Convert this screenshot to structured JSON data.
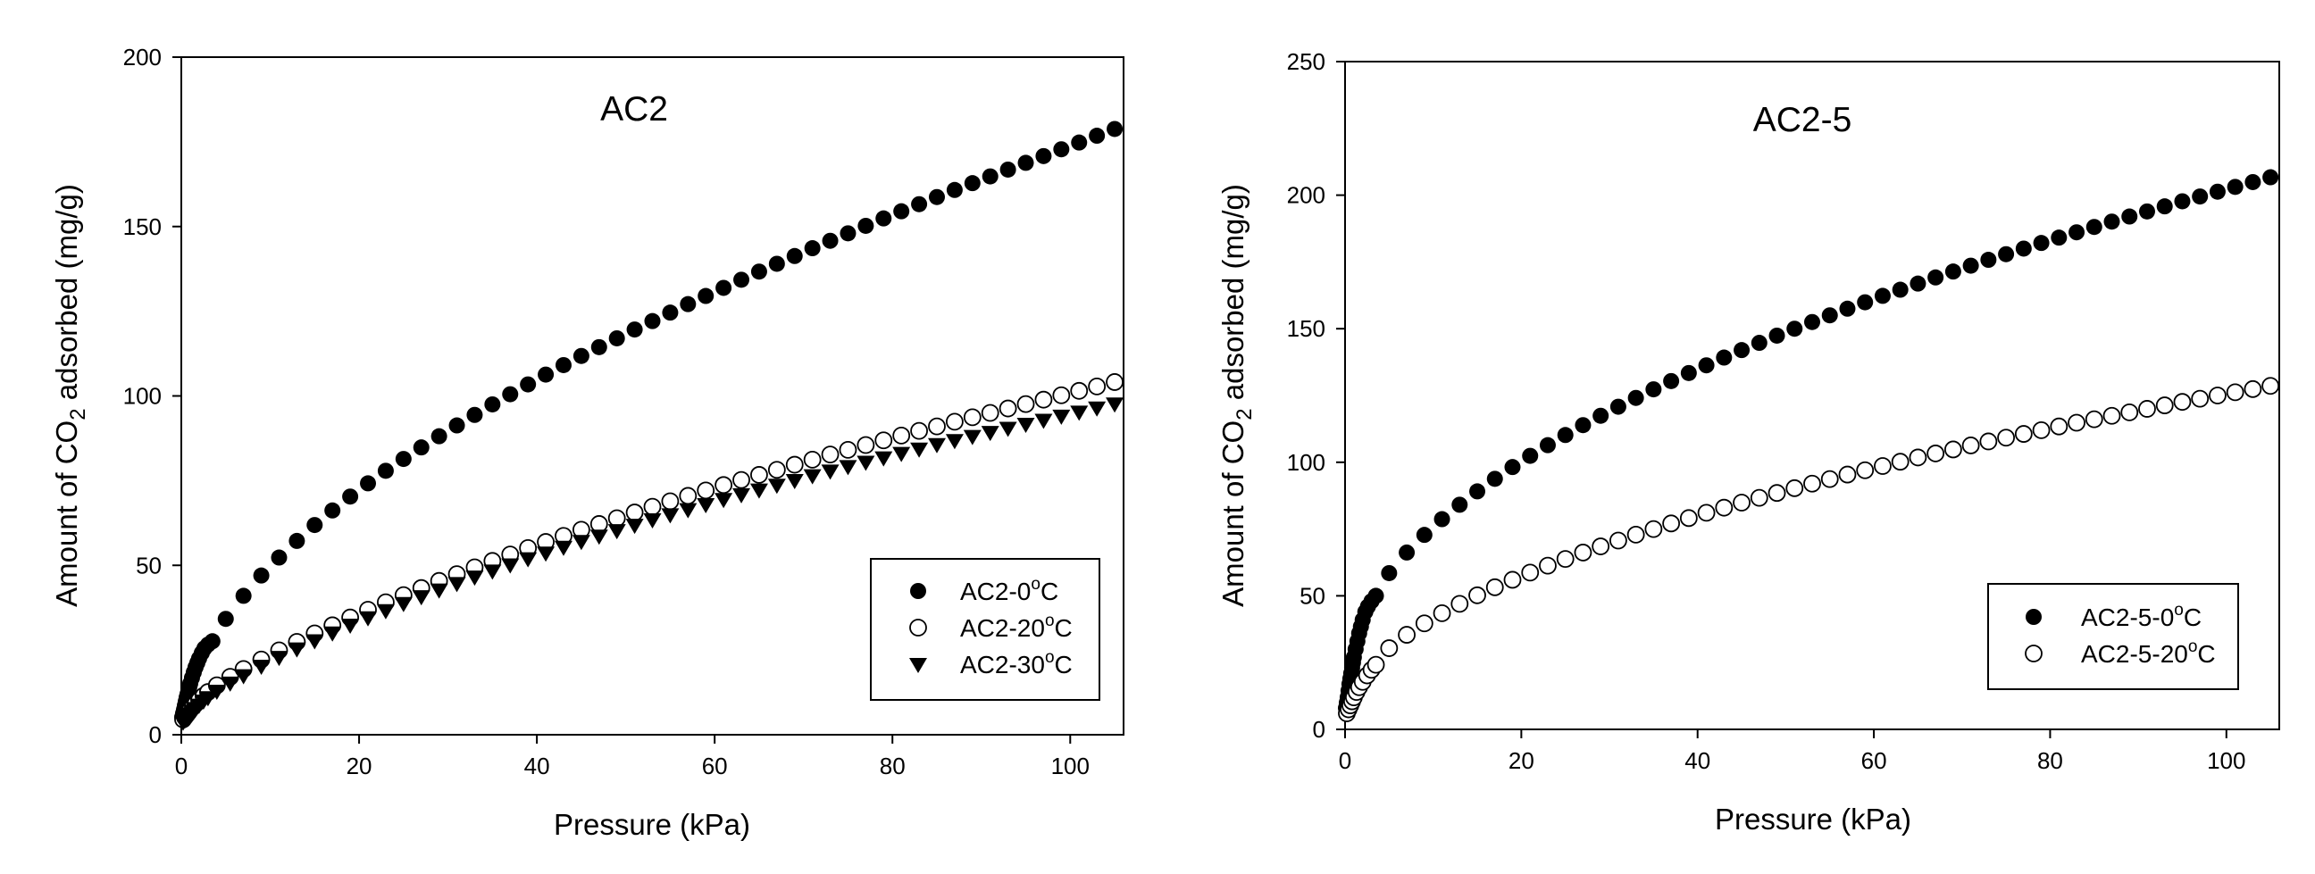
{
  "chart_data": [
    {
      "type": "scatter",
      "title": "AC2",
      "xlabel": "Pressure (kPa)",
      "ylabel": {
        "prefix": "Amount of CO",
        "sub": "2",
        "suffix": " adsorbed (mg/g)"
      },
      "xlim": [
        0,
        106
      ],
      "ylim": [
        0,
        200
      ],
      "x_ticks": [
        0,
        20,
        40,
        60,
        80,
        100
      ],
      "y_ticks": [
        0,
        50,
        100,
        150,
        200
      ],
      "legend_position": "bottom-right",
      "series": [
        {
          "name": "AC2-0",
          "legend": {
            "prefix": "AC2-0",
            "sup": "o",
            "suffix": "C"
          },
          "marker": "filled-circle",
          "x": [
            0.1,
            0.2,
            0.3,
            0.4,
            0.5,
            0.6,
            0.7,
            0.8,
            0.9,
            1.0,
            1.2,
            1.4,
            1.6,
            1.8,
            2.0,
            2.3,
            2.6,
            3.0,
            3.5,
            5,
            7,
            9,
            11,
            13,
            15,
            17,
            19,
            21,
            23,
            25,
            27,
            29,
            31,
            33,
            35,
            37,
            39,
            41,
            43,
            45,
            47,
            49,
            51,
            53,
            55,
            57,
            59,
            61,
            63,
            65,
            67,
            69,
            71,
            73,
            75,
            77,
            79,
            81,
            83,
            85,
            87,
            89,
            91,
            93,
            95,
            97,
            99,
            101,
            103,
            105
          ],
          "y": [
            5.2,
            6.3,
            7.4,
            8.6,
            9.8,
            11.0,
            12.0,
            13.1,
            14.1,
            15.1,
            16.8,
            18.4,
            19.9,
            21.2,
            22.5,
            24.1,
            25.5,
            26.6,
            27.6,
            34.2,
            41.0,
            47.0,
            52.3,
            57.2,
            61.9,
            66.2,
            70.3,
            74.2,
            77.9,
            81.4,
            84.8,
            88.1,
            91.3,
            94.4,
            97.5,
            100.5,
            103.4,
            106.3,
            109.1,
            111.8,
            114.4,
            117.0,
            119.6,
            122.1,
            124.6,
            127.1,
            129.5,
            131.9,
            134.3,
            136.7,
            139.0,
            141.3,
            143.6,
            145.8,
            148.0,
            150.2,
            152.4,
            154.5,
            156.6,
            158.7,
            160.8,
            162.8,
            164.8,
            166.8,
            168.8,
            170.8,
            172.8,
            174.8,
            176.8,
            178.8
          ]
        },
        {
          "name": "AC2-20",
          "legend": {
            "prefix": "AC2-20",
            "sup": "o",
            "suffix": "C"
          },
          "marker": "open-circle",
          "x": [
            0.2,
            0.4,
            0.6,
            0.8,
            1.0,
            1.3,
            1.6,
            2.0,
            2.5,
            3.0,
            4.0,
            5.5,
            7,
            9,
            11,
            13,
            15,
            17,
            19,
            21,
            23,
            25,
            27,
            29,
            31,
            33,
            35,
            37,
            39,
            41,
            43,
            45,
            47,
            49,
            51,
            53,
            55,
            57,
            59,
            61,
            63,
            65,
            67,
            69,
            71,
            73,
            75,
            77,
            79,
            81,
            83,
            85,
            87,
            89,
            91,
            93,
            95,
            97,
            99,
            101,
            103,
            105
          ],
          "y": [
            4.5,
            5.2,
            5.9,
            6.6,
            7.3,
            8.2,
            9.1,
            10.2,
            11.5,
            12.6,
            14.6,
            17.1,
            19.4,
            22.2,
            24.9,
            27.4,
            29.9,
            32.3,
            34.6,
            36.9,
            39.1,
            41.2,
            43.3,
            45.4,
            47.4,
            49.4,
            51.3,
            53.2,
            55.1,
            56.9,
            58.7,
            60.5,
            62.2,
            63.9,
            65.6,
            67.3,
            68.9,
            70.5,
            72.1,
            73.7,
            75.2,
            76.7,
            78.2,
            79.7,
            81.2,
            82.7,
            84.1,
            85.5,
            86.9,
            88.3,
            89.7,
            91.0,
            92.4,
            93.7,
            95.0,
            96.3,
            97.6,
            98.9,
            100.2,
            101.5,
            102.8,
            104.1
          ]
        },
        {
          "name": "AC2-30",
          "legend": {
            "prefix": "AC2-30",
            "sup": "o",
            "suffix": "C"
          },
          "marker": "filled-triangle-down",
          "x": [
            0.2,
            0.4,
            0.6,
            0.8,
            1.0,
            1.3,
            1.6,
            2.0,
            2.5,
            3.0,
            4.0,
            5.5,
            7,
            9,
            11,
            13,
            15,
            17,
            19,
            21,
            23,
            25,
            27,
            29,
            31,
            33,
            35,
            37,
            39,
            41,
            43,
            45,
            47,
            49,
            51,
            53,
            55,
            57,
            59,
            61,
            63,
            65,
            67,
            69,
            71,
            73,
            75,
            77,
            79,
            81,
            83,
            85,
            87,
            89,
            91,
            93,
            95,
            97,
            99,
            101,
            103,
            105
          ],
          "y": [
            3.8,
            4.4,
            5.0,
            5.6,
            6.2,
            7.0,
            7.8,
            8.8,
            10.0,
            11.0,
            12.9,
            15.3,
            17.5,
            20.3,
            22.9,
            25.4,
            27.8,
            30.1,
            32.4,
            34.6,
            36.7,
            38.8,
            40.8,
            42.8,
            44.7,
            46.6,
            48.4,
            50.2,
            52.0,
            53.7,
            55.4,
            57.1,
            58.7,
            60.3,
            61.9,
            63.5,
            65.0,
            66.5,
            68.0,
            69.5,
            70.9,
            72.3,
            73.7,
            75.1,
            76.5,
            77.9,
            79.2,
            80.5,
            81.8,
            83.1,
            84.4,
            85.7,
            86.9,
            88.1,
            89.3,
            90.5,
            91.7,
            92.9,
            94.1,
            95.3,
            96.5,
            97.7
          ]
        }
      ]
    },
    {
      "type": "scatter",
      "title": "AC2-5",
      "xlabel": "Pressure (kPa)",
      "ylabel": {
        "prefix": "Amount of CO",
        "sub": "2",
        "suffix": " adsorbed (mg/g)"
      },
      "xlim": [
        0,
        106
      ],
      "ylim": [
        0,
        250
      ],
      "x_ticks": [
        0,
        20,
        40,
        60,
        80,
        100
      ],
      "y_ticks": [
        0,
        50,
        100,
        150,
        200,
        250
      ],
      "legend_position": "bottom-right",
      "series": [
        {
          "name": "AC2-5-0",
          "legend": {
            "prefix": "AC2-5-0",
            "sup": "o",
            "suffix": "C"
          },
          "marker": "filled-circle",
          "x": [
            0.1,
            0.2,
            0.3,
            0.4,
            0.5,
            0.6,
            0.7,
            0.8,
            0.9,
            1.0,
            1.2,
            1.4,
            1.6,
            1.8,
            2.0,
            2.3,
            2.6,
            3.0,
            3.5,
            5,
            7,
            9,
            11,
            13,
            15,
            17,
            19,
            21,
            23,
            25,
            27,
            29,
            31,
            33,
            35,
            37,
            39,
            41,
            43,
            45,
            47,
            49,
            51,
            53,
            55,
            57,
            59,
            61,
            63,
            65,
            67,
            69,
            71,
            73,
            75,
            77,
            79,
            81,
            83,
            85,
            87,
            89,
            91,
            93,
            95,
            97,
            99,
            101,
            103,
            105
          ],
          "y": [
            8,
            10,
            12,
            14.5,
            17,
            19,
            21,
            23,
            25,
            27,
            30,
            33,
            36,
            38.5,
            41,
            44,
            46,
            48,
            50,
            58.5,
            66.2,
            72.8,
            78.7,
            84.1,
            89.1,
            93.8,
            98.2,
            102.4,
            106.4,
            110.2,
            113.9,
            117.4,
            120.8,
            124.1,
            127.3,
            130.4,
            133.4,
            136.3,
            139.2,
            142.0,
            144.7,
            147.4,
            150.0,
            152.5,
            155.0,
            157.5,
            159.9,
            162.3,
            164.6,
            166.9,
            169.2,
            171.4,
            173.6,
            175.8,
            177.9,
            180.0,
            182.1,
            184.1,
            186.1,
            188.1,
            190.1,
            192.0,
            193.9,
            195.8,
            197.7,
            199.5,
            201.3,
            203.1,
            204.9,
            206.7
          ]
        },
        {
          "name": "AC2-5-20",
          "legend": {
            "prefix": "AC2-5-20",
            "sup": "o",
            "suffix": "C"
          },
          "marker": "open-circle",
          "x": [
            0.2,
            0.4,
            0.6,
            0.8,
            1.0,
            1.3,
            1.6,
            2.0,
            2.5,
            3.0,
            3.5,
            5,
            7,
            9,
            11,
            13,
            15,
            17,
            19,
            21,
            23,
            25,
            27,
            29,
            31,
            33,
            35,
            37,
            39,
            41,
            43,
            45,
            47,
            49,
            51,
            53,
            55,
            57,
            59,
            61,
            63,
            65,
            67,
            69,
            71,
            73,
            75,
            77,
            79,
            81,
            83,
            85,
            87,
            89,
            91,
            93,
            95,
            97,
            99,
            101,
            103,
            105
          ],
          "y": [
            6,
            7.5,
            9,
            10.5,
            12,
            14,
            15.8,
            17.8,
            20.2,
            22.3,
            24.2,
            30.4,
            35.4,
            39.7,
            43.5,
            47.0,
            50.2,
            53.2,
            56.0,
            58.7,
            61.3,
            63.8,
            66.2,
            68.5,
            70.7,
            72.9,
            75.0,
            77.1,
            79.1,
            81.1,
            83.0,
            84.9,
            86.7,
            88.5,
            90.3,
            92.0,
            93.7,
            95.4,
            97.0,
            98.6,
            100.2,
            101.8,
            103.3,
            104.8,
            106.3,
            107.8,
            109.2,
            110.6,
            112.0,
            113.4,
            114.8,
            116.1,
            117.4,
            118.7,
            120.0,
            121.3,
            122.6,
            123.8,
            125.0,
            126.2,
            127.4,
            128.6
          ]
        }
      ]
    }
  ]
}
